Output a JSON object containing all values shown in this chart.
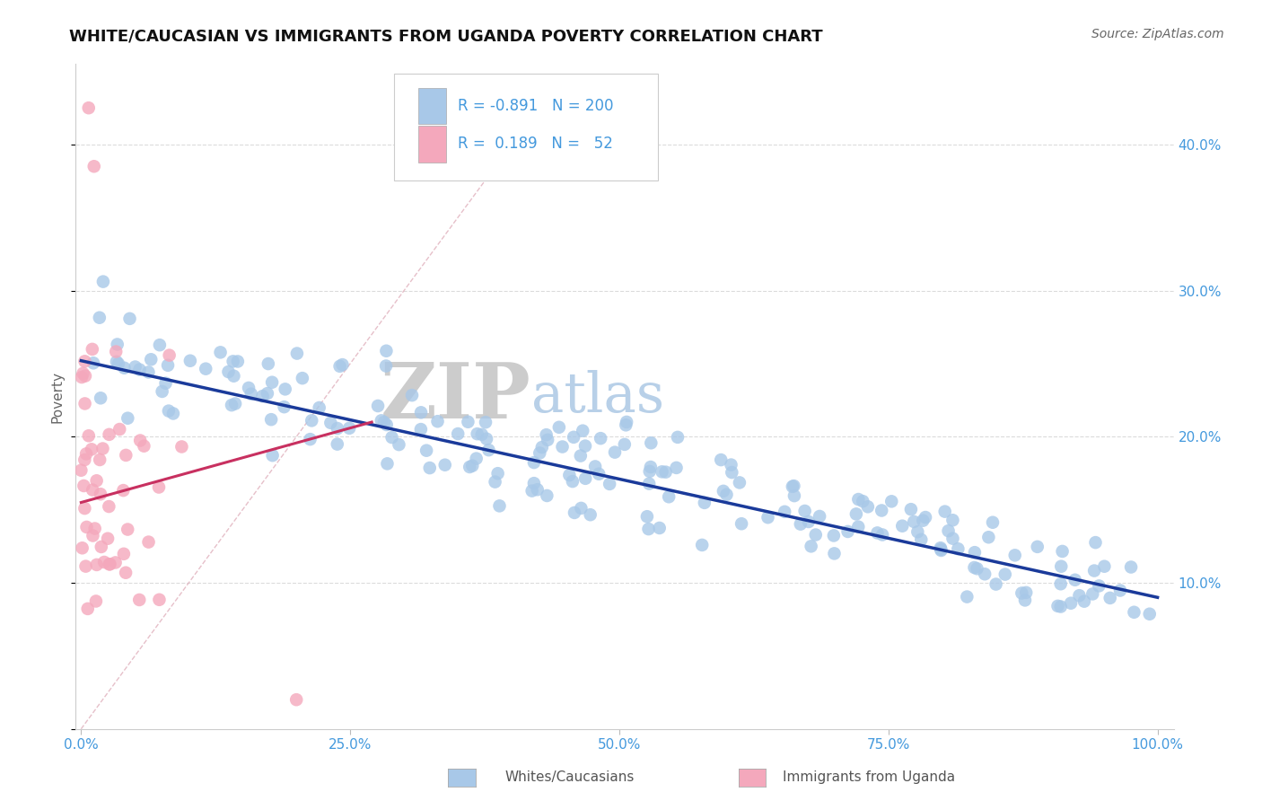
{
  "title": "WHITE/CAUCASIAN VS IMMIGRANTS FROM UGANDA POVERTY CORRELATION CHART",
  "source": "Source: ZipAtlas.com",
  "ylabel": "Poverty",
  "legend_blue_r": "-0.891",
  "legend_blue_n": "200",
  "legend_pink_r": "0.189",
  "legend_pink_n": "52",
  "blue_color": "#a8c8e8",
  "pink_color": "#f4a8bc",
  "blue_line_color": "#1a3a9a",
  "pink_line_color": "#c83060",
  "diag_color": "#e0b0bc",
  "axis_color": "#4499dd",
  "grid_color": "#cccccc",
  "title_color": "#111111",
  "bg_color": "#ffffff",
  "watermark_zip_color": "#cccccc",
  "watermark_atlas_color": "#b8d0e8",
  "ytick_positions": [
    0.1,
    0.2,
    0.3,
    0.4
  ],
  "ytick_labels": [
    "10.0%",
    "20.0%",
    "30.0%",
    "40.0%"
  ],
  "legend_label_white": "Whites/Caucasians",
  "legend_label_uganda": "Immigrants from Uganda"
}
